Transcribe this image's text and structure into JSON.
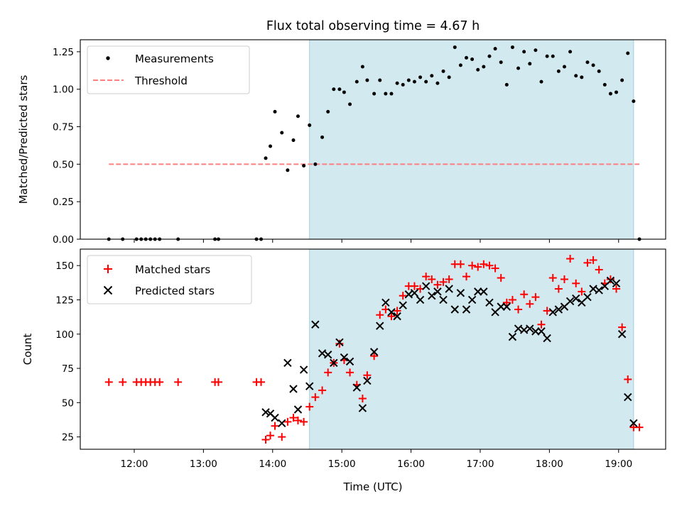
{
  "title": "Flux total observing time = 4.67 h",
  "colors": {
    "shade": "#d3e9f0",
    "shade_edge": "#9fd0dc",
    "threshold": "#ff7f7f",
    "matched": "#ff0000",
    "predicted": "#000000",
    "measurement": "#000000"
  },
  "chart_data": [
    {
      "type": "scatter",
      "panel": "top",
      "ylabel": "Matched/Predicted stars",
      "ylim": [
        0,
        1.33
      ],
      "yticks": [
        0.0,
        0.25,
        0.5,
        0.75,
        1.0,
        1.25
      ],
      "ytick_labels": [
        "0.00",
        "0.25",
        "0.50",
        "0.75",
        "1.00",
        "1.25"
      ],
      "xlim_hours": [
        11.22,
        19.68
      ],
      "shaded_span": [
        "14:32",
        "19:13"
      ],
      "legend_position": "upper-left",
      "series": [
        {
          "name": "Measurements",
          "marker": "dot",
          "points": [
            [
              "11:38",
              0.0
            ],
            [
              "11:50",
              0.0
            ],
            [
              "12:02",
              0.0
            ],
            [
              "12:06",
              0.0
            ],
            [
              "12:10",
              0.0
            ],
            [
              "12:14",
              0.0
            ],
            [
              "12:18",
              0.0
            ],
            [
              "12:22",
              0.0
            ],
            [
              "12:38",
              0.0
            ],
            [
              "13:10",
              0.0
            ],
            [
              "13:13",
              0.0
            ],
            [
              "13:46",
              0.0
            ],
            [
              "13:50",
              0.0
            ],
            [
              "13:54",
              0.54
            ],
            [
              "13:58",
              0.62
            ],
            [
              "14:02",
              0.85
            ],
            [
              "14:08",
              0.71
            ],
            [
              "14:13",
              0.46
            ],
            [
              "14:18",
              0.66
            ],
            [
              "14:22",
              0.82
            ],
            [
              "14:27",
              0.49
            ],
            [
              "14:32",
              0.76
            ],
            [
              "14:37",
              0.5
            ],
            [
              "14:43",
              0.68
            ],
            [
              "14:48",
              0.85
            ],
            [
              "14:53",
              1.0
            ],
            [
              "14:58",
              1.0
            ],
            [
              "15:02",
              0.98
            ],
            [
              "15:07",
              0.9
            ],
            [
              "15:13",
              1.05
            ],
            [
              "15:18",
              1.15
            ],
            [
              "15:22",
              1.06
            ],
            [
              "15:28",
              0.97
            ],
            [
              "15:33",
              1.06
            ],
            [
              "15:38",
              0.97
            ],
            [
              "15:43",
              0.97
            ],
            [
              "15:48",
              1.04
            ],
            [
              "15:53",
              1.03
            ],
            [
              "15:58",
              1.06
            ],
            [
              "16:03",
              1.05
            ],
            [
              "16:08",
              1.08
            ],
            [
              "16:13",
              1.05
            ],
            [
              "16:18",
              1.09
            ],
            [
              "16:23",
              1.04
            ],
            [
              "16:28",
              1.12
            ],
            [
              "16:33",
              1.08
            ],
            [
              "16:38",
              1.28
            ],
            [
              "16:43",
              1.16
            ],
            [
              "16:48",
              1.21
            ],
            [
              "16:53",
              1.2
            ],
            [
              "16:58",
              1.13
            ],
            [
              "17:03",
              1.15
            ],
            [
              "17:08",
              1.22
            ],
            [
              "17:13",
              1.27
            ],
            [
              "17:18",
              1.18
            ],
            [
              "17:23",
              1.03
            ],
            [
              "17:28",
              1.28
            ],
            [
              "17:33",
              1.14
            ],
            [
              "17:38",
              1.25
            ],
            [
              "17:43",
              1.17
            ],
            [
              "17:48",
              1.26
            ],
            [
              "17:53",
              1.05
            ],
            [
              "17:58",
              1.22
            ],
            [
              "18:03",
              1.22
            ],
            [
              "18:08",
              1.12
            ],
            [
              "18:13",
              1.15
            ],
            [
              "18:18",
              1.25
            ],
            [
              "18:23",
              1.09
            ],
            [
              "18:28",
              1.08
            ],
            [
              "18:33",
              1.18
            ],
            [
              "18:38",
              1.16
            ],
            [
              "18:43",
              1.12
            ],
            [
              "18:48",
              1.03
            ],
            [
              "18:53",
              0.97
            ],
            [
              "18:58",
              0.98
            ],
            [
              "19:03",
              1.06
            ],
            [
              "19:08",
              1.24
            ],
            [
              "19:13",
              0.92
            ],
            [
              "19:18",
              0.0
            ]
          ]
        },
        {
          "name": "Threshold",
          "style": "dashed",
          "points": [
            [
              "11:38",
              0.5
            ],
            [
              "19:18",
              0.5
            ]
          ]
        }
      ]
    },
    {
      "type": "scatter",
      "panel": "bottom",
      "xlabel": "Time (UTC)",
      "ylabel": "Count",
      "ylim": [
        16,
        162
      ],
      "yticks": [
        25,
        50,
        75,
        100,
        125,
        150
      ],
      "xlim_hours": [
        11.22,
        19.68
      ],
      "xticks": [
        "12:00",
        "13:00",
        "14:00",
        "15:00",
        "16:00",
        "17:00",
        "18:00",
        "19:00"
      ],
      "shaded_span": [
        "14:32",
        "19:13"
      ],
      "legend_position": "upper-left",
      "series": [
        {
          "name": "Matched stars",
          "marker": "plus",
          "points": [
            [
              "11:38",
              65
            ],
            [
              "11:50",
              65
            ],
            [
              "12:02",
              65
            ],
            [
              "12:06",
              65
            ],
            [
              "12:10",
              65
            ],
            [
              "12:14",
              65
            ],
            [
              "12:18",
              65
            ],
            [
              "12:22",
              65
            ],
            [
              "12:38",
              65
            ],
            [
              "13:10",
              65
            ],
            [
              "13:13",
              65
            ],
            [
              "13:46",
              65
            ],
            [
              "13:50",
              65
            ],
            [
              "13:54",
              23
            ],
            [
              "13:58",
              26
            ],
            [
              "14:02",
              33
            ],
            [
              "14:08",
              25
            ],
            [
              "14:13",
              36
            ],
            [
              "14:18",
              39
            ],
            [
              "14:22",
              37
            ],
            [
              "14:27",
              36
            ],
            [
              "14:32",
              47
            ],
            [
              "14:37",
              54
            ],
            [
              "14:43",
              59
            ],
            [
              "14:48",
              72
            ],
            [
              "14:53",
              79
            ],
            [
              "14:58",
              93
            ],
            [
              "15:02",
              81
            ],
            [
              "15:07",
              72
            ],
            [
              "15:13",
              63
            ],
            [
              "15:18",
              53
            ],
            [
              "15:22",
              70
            ],
            [
              "15:28",
              84
            ],
            [
              "15:33",
              114
            ],
            [
              "15:38",
              118
            ],
            [
              "15:43",
              113
            ],
            [
              "15:48",
              117
            ],
            [
              "15:53",
              128
            ],
            [
              "15:58",
              135
            ],
            [
              "16:03",
              135
            ],
            [
              "16:08",
              133
            ],
            [
              "16:13",
              142
            ],
            [
              "16:18",
              140
            ],
            [
              "16:23",
              136
            ],
            [
              "16:28",
              138
            ],
            [
              "16:33",
              140
            ],
            [
              "16:38",
              151
            ],
            [
              "16:43",
              151
            ],
            [
              "16:48",
              142
            ],
            [
              "16:53",
              150
            ],
            [
              "16:58",
              149
            ],
            [
              "17:03",
              151
            ],
            [
              "17:08",
              150
            ],
            [
              "17:13",
              148
            ],
            [
              "17:18",
              141
            ],
            [
              "17:23",
              123
            ],
            [
              "17:28",
              125
            ],
            [
              "17:33",
              118
            ],
            [
              "17:38",
              129
            ],
            [
              "17:43",
              122
            ],
            [
              "17:48",
              127
            ],
            [
              "17:53",
              107
            ],
            [
              "17:58",
              117
            ],
            [
              "18:03",
              141
            ],
            [
              "18:08",
              133
            ],
            [
              "18:13",
              140
            ],
            [
              "18:18",
              155
            ],
            [
              "18:23",
              137
            ],
            [
              "18:28",
              131
            ],
            [
              "18:33",
              152
            ],
            [
              "18:38",
              154
            ],
            [
              "18:43",
              147
            ],
            [
              "18:48",
              137
            ],
            [
              "18:53",
              140
            ],
            [
              "18:58",
              133
            ],
            [
              "19:03",
              105
            ],
            [
              "19:08",
              67
            ],
            [
              "19:13",
              32
            ],
            [
              "19:18",
              32
            ]
          ]
        },
        {
          "name": "Predicted stars",
          "marker": "x",
          "points": [
            [
              "13:54",
              43
            ],
            [
              "13:58",
              42
            ],
            [
              "14:02",
              39
            ],
            [
              "14:08",
              35
            ],
            [
              "14:13",
              79
            ],
            [
              "14:18",
              60
            ],
            [
              "14:22",
              45
            ],
            [
              "14:27",
              74
            ],
            [
              "14:32",
              62
            ],
            [
              "14:37",
              107
            ],
            [
              "14:43",
              86
            ],
            [
              "14:48",
              85
            ],
            [
              "14:53",
              79
            ],
            [
              "14:58",
              94
            ],
            [
              "15:02",
              83
            ],
            [
              "15:07",
              80
            ],
            [
              "15:13",
              61
            ],
            [
              "15:18",
              46
            ],
            [
              "15:22",
              66
            ],
            [
              "15:28",
              87
            ],
            [
              "15:33",
              106
            ],
            [
              "15:38",
              123
            ],
            [
              "15:43",
              116
            ],
            [
              "15:48",
              113
            ],
            [
              "15:53",
              121
            ],
            [
              "15:58",
              129
            ],
            [
              "16:03",
              130
            ],
            [
              "16:08",
              125
            ],
            [
              "16:13",
              135
            ],
            [
              "16:18",
              128
            ],
            [
              "16:23",
              131
            ],
            [
              "16:28",
              125
            ],
            [
              "16:33",
              133
            ],
            [
              "16:38",
              118
            ],
            [
              "16:43",
              130
            ],
            [
              "16:48",
              118
            ],
            [
              "16:53",
              125
            ],
            [
              "16:58",
              131
            ],
            [
              "17:03",
              131
            ],
            [
              "17:08",
              123
            ],
            [
              "17:13",
              116
            ],
            [
              "17:18",
              120
            ],
            [
              "17:23",
              120
            ],
            [
              "17:28",
              98
            ],
            [
              "17:33",
              104
            ],
            [
              "17:38",
              103
            ],
            [
              "17:43",
              104
            ],
            [
              "17:48",
              102
            ],
            [
              "17:53",
              102
            ],
            [
              "17:58",
              97
            ],
            [
              "18:03",
              116
            ],
            [
              "18:08",
              118
            ],
            [
              "18:13",
              120
            ],
            [
              "18:18",
              124
            ],
            [
              "18:23",
              126
            ],
            [
              "18:28",
              123
            ],
            [
              "18:33",
              127
            ],
            [
              "18:38",
              133
            ],
            [
              "18:43",
              132
            ],
            [
              "18:48",
              135
            ],
            [
              "18:53",
              139
            ],
            [
              "18:58",
              137
            ],
            [
              "19:03",
              100
            ],
            [
              "19:08",
              54
            ],
            [
              "19:13",
              35
            ]
          ]
        }
      ]
    }
  ]
}
